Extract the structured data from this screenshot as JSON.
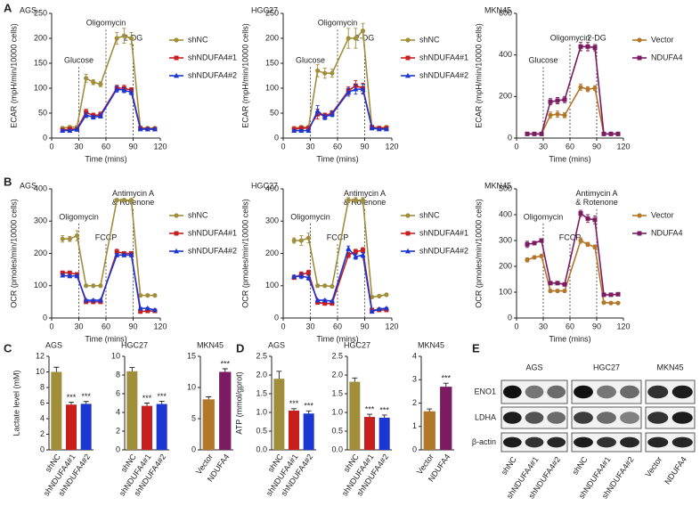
{
  "panel_labels": [
    "A",
    "B",
    "C",
    "D",
    "E"
  ],
  "chart_data": [
    {
      "type": "line",
      "title": "AGS",
      "xlabel": "Time (mins)",
      "ylabel": "ECAR (mpH/min/10000 cells)",
      "x": [
        12,
        20,
        28,
        38,
        46,
        54,
        72,
        80,
        88,
        98,
        106,
        114
      ],
      "xlim": [
        0,
        120
      ],
      "xticks": [
        0,
        30,
        60,
        90,
        120
      ],
      "ylim": [
        0,
        250
      ],
      "yticks": [
        0,
        50,
        100,
        150,
        200,
        250
      ],
      "annotations": [
        {
          "x": 30,
          "text": [
            "Glucose"
          ]
        },
        {
          "x": 60,
          "text": [
            "Oligomycin"
          ]
        },
        {
          "x": 90,
          "text": [
            "2-DG"
          ]
        }
      ],
      "series": [
        {
          "name": "shNC",
          "color": "#a18e3b",
          "marker": "circle",
          "values": [
            20,
            22,
            22,
            120,
            112,
            108,
            200,
            205,
            200,
            20,
            20,
            20
          ],
          "errors": [
            3,
            3,
            3,
            8,
            5,
            5,
            12,
            15,
            12,
            3,
            2,
            2
          ]
        },
        {
          "name": "shNDUFA4#1",
          "color": "#c81e1e",
          "marker": "square",
          "values": [
            16,
            18,
            18,
            52,
            45,
            47,
            100,
            100,
            96,
            20,
            18,
            18
          ],
          "errors": [
            2,
            2,
            2,
            6,
            5,
            5,
            6,
            6,
            5,
            2,
            2,
            2
          ]
        },
        {
          "name": "shNDUFA4#2",
          "color": "#1b36d1",
          "marker": "triangle",
          "values": [
            15,
            15,
            17,
            46,
            42,
            44,
            98,
            96,
            92,
            18,
            18,
            18
          ],
          "errors": [
            2,
            2,
            2,
            5,
            4,
            4,
            6,
            5,
            5,
            2,
            2,
            2
          ]
        }
      ]
    },
    {
      "type": "line",
      "title": "HGC27",
      "xlabel": "Time (mins)",
      "ylabel": "ECAR (mpH/min/10000 cells)",
      "x": [
        12,
        20,
        28,
        38,
        46,
        54,
        72,
        80,
        88,
        98,
        106,
        114
      ],
      "xlim": [
        0,
        120
      ],
      "xticks": [
        0,
        30,
        60,
        90,
        120
      ],
      "ylim": [
        0,
        250
      ],
      "yticks": [
        0,
        50,
        100,
        150,
        200,
        250
      ],
      "annotations": [
        {
          "x": 30,
          "text": [
            "Glucose"
          ]
        },
        {
          "x": 60,
          "text": [
            "Oligomycin"
          ]
        },
        {
          "x": 90,
          "text": [
            "2-DG"
          ]
        }
      ],
      "series": [
        {
          "name": "shNC",
          "color": "#a18e3b",
          "marker": "circle",
          "values": [
            20,
            22,
            22,
            135,
            130,
            130,
            200,
            200,
            215,
            20,
            20,
            22
          ],
          "errors": [
            3,
            3,
            3,
            12,
            10,
            8,
            20,
            20,
            15,
            3,
            2,
            2
          ]
        },
        {
          "name": "shNDUFA4#1",
          "color": "#c81e1e",
          "marker": "square",
          "values": [
            18,
            20,
            20,
            48,
            45,
            50,
            95,
            105,
            100,
            22,
            20,
            20
          ],
          "errors": [
            2,
            2,
            2,
            10,
            5,
            5,
            8,
            10,
            10,
            2,
            2,
            2
          ]
        },
        {
          "name": "shNDUFA4#2",
          "color": "#1b36d1",
          "marker": "triangle",
          "values": [
            15,
            15,
            15,
            55,
            42,
            48,
            92,
            98,
            98,
            20,
            18,
            18
          ],
          "errors": [
            2,
            2,
            2,
            10,
            5,
            5,
            8,
            10,
            10,
            2,
            2,
            2
          ]
        }
      ]
    },
    {
      "type": "line",
      "title": "MKN45",
      "xlabel": "Time (mins)",
      "ylabel": "ECAR (mpH/min/10000 cells)",
      "x": [
        12,
        20,
        28,
        38,
        46,
        54,
        72,
        80,
        88,
        98,
        106,
        114
      ],
      "xlim": [
        0,
        120
      ],
      "xticks": [
        0,
        30,
        60,
        90,
        120
      ],
      "ylim": [
        0,
        600
      ],
      "yticks": [
        0,
        200,
        400,
        600
      ],
      "annotations": [
        {
          "x": 30,
          "text": [
            "Glucose"
          ]
        },
        {
          "x": 60,
          "text": [
            "Oligomycin"
          ]
        },
        {
          "x": 90,
          "text": [
            "2-DG"
          ]
        }
      ],
      "series": [
        {
          "name": "Vector",
          "color": "#b3772a",
          "marker": "circle",
          "values": [
            20,
            20,
            20,
            110,
            115,
            110,
            245,
            235,
            240,
            20,
            20,
            20
          ],
          "errors": [
            4,
            4,
            4,
            15,
            15,
            12,
            15,
            12,
            12,
            3,
            3,
            3
          ]
        },
        {
          "name": "NDUFA4",
          "color": "#7b1c63",
          "marker": "square",
          "values": [
            20,
            20,
            20,
            175,
            180,
            185,
            440,
            440,
            435,
            20,
            20,
            20
          ],
          "errors": [
            4,
            4,
            4,
            15,
            15,
            15,
            20,
            20,
            15,
            3,
            3,
            3
          ]
        }
      ]
    },
    {
      "type": "line",
      "title": "AGS",
      "xlabel": "Time (mins)",
      "ylabel": "OCR (pmoles/min/10000 cells)",
      "x": [
        12,
        20,
        28,
        38,
        46,
        54,
        72,
        80,
        88,
        98,
        106,
        114
      ],
      "xlim": [
        0,
        120
      ],
      "xticks": [
        0,
        30,
        60,
        90,
        120
      ],
      "ylim": [
        0,
        400
      ],
      "yticks": [
        0,
        100,
        200,
        300,
        400
      ],
      "annotations": [
        {
          "x": 30,
          "text": [
            "Oligomycin"
          ]
        },
        {
          "x": 60,
          "text": [
            "FCCP"
          ]
        },
        {
          "x": 90,
          "text": [
            "Antimycin A",
            "& Rotenone"
          ]
        }
      ],
      "series": [
        {
          "name": "shNC",
          "color": "#a18e3b",
          "marker": "circle",
          "values": [
            245,
            245,
            255,
            100,
            100,
            100,
            365,
            365,
            365,
            70,
            70,
            70
          ],
          "errors": [
            10,
            8,
            15,
            3,
            3,
            3,
            5,
            5,
            5,
            3,
            3,
            3
          ]
        },
        {
          "name": "shNDUFA4#1",
          "color": "#c81e1e",
          "marker": "square",
          "values": [
            140,
            140,
            135,
            50,
            50,
            50,
            205,
            200,
            200,
            20,
            22,
            22
          ],
          "errors": [
            5,
            5,
            5,
            3,
            3,
            3,
            8,
            5,
            5,
            3,
            3,
            3
          ]
        },
        {
          "name": "shNDUFA4#2",
          "color": "#1b36d1",
          "marker": "triangle",
          "values": [
            132,
            130,
            130,
            55,
            55,
            55,
            195,
            195,
            195,
            30,
            30,
            25
          ],
          "errors": [
            5,
            5,
            5,
            3,
            3,
            3,
            5,
            5,
            5,
            3,
            3,
            3
          ]
        }
      ]
    },
    {
      "type": "line",
      "title": "HGC27",
      "xlabel": "Time (mins)",
      "ylabel": "OCR (pmoles/min/10000 cells)",
      "x": [
        12,
        20,
        28,
        38,
        46,
        54,
        72,
        80,
        88,
        98,
        106,
        114
      ],
      "xlim": [
        0,
        120
      ],
      "xticks": [
        0,
        30,
        60,
        90,
        120
      ],
      "ylim": [
        0,
        400
      ],
      "yticks": [
        0,
        100,
        200,
        300,
        400
      ],
      "annotations": [
        {
          "x": 30,
          "text": [
            "Oligomycin"
          ]
        },
        {
          "x": 60,
          "text": [
            "FCCP"
          ]
        },
        {
          "x": 90,
          "text": [
            "Antimycin A",
            "& Rotenone"
          ]
        }
      ],
      "series": [
        {
          "name": "shNC",
          "color": "#a18e3b",
          "marker": "circle",
          "values": [
            240,
            240,
            248,
            100,
            100,
            98,
            365,
            365,
            365,
            65,
            68,
            72
          ],
          "errors": [
            8,
            15,
            15,
            3,
            3,
            3,
            8,
            8,
            8,
            3,
            3,
            3
          ]
        },
        {
          "name": "shNDUFA4#1",
          "color": "#c81e1e",
          "marker": "square",
          "values": [
            125,
            135,
            140,
            48,
            45,
            45,
            195,
            205,
            210,
            25,
            25,
            25
          ],
          "errors": [
            5,
            8,
            8,
            3,
            3,
            3,
            8,
            8,
            8,
            3,
            3,
            3
          ]
        },
        {
          "name": "shNDUFA4#2",
          "color": "#1b36d1",
          "marker": "triangle",
          "values": [
            128,
            130,
            125,
            55,
            55,
            52,
            215,
            190,
            195,
            20,
            28,
            30
          ],
          "errors": [
            5,
            8,
            8,
            3,
            3,
            3,
            8,
            8,
            8,
            3,
            3,
            3
          ]
        }
      ]
    },
    {
      "type": "line",
      "title": "MKN45",
      "xlabel": "Time (mins)",
      "ylabel": "OCR (pmoles/min/10000 cells)",
      "x": [
        12,
        20,
        28,
        38,
        46,
        54,
        72,
        80,
        88,
        98,
        106,
        114
      ],
      "xlim": [
        0,
        120
      ],
      "xticks": [
        0,
        30,
        60,
        90,
        120
      ],
      "ylim": [
        0,
        500
      ],
      "yticks": [
        0,
        100,
        200,
        300,
        400,
        500
      ],
      "annotations": [
        {
          "x": 30,
          "text": [
            "Oligomycin"
          ]
        },
        {
          "x": 60,
          "text": [
            "FCCP"
          ]
        },
        {
          "x": 90,
          "text": [
            "Antimycin A",
            "& Rotenone"
          ]
        }
      ],
      "series": [
        {
          "name": "Vector",
          "color": "#b3772a",
          "marker": "circle",
          "values": [
            225,
            235,
            240,
            105,
            105,
            105,
            300,
            285,
            275,
            60,
            58,
            58
          ],
          "errors": [
            8,
            5,
            5,
            5,
            5,
            5,
            10,
            8,
            8,
            3,
            3,
            3
          ]
        },
        {
          "name": "NDUFA4",
          "color": "#7b1c63",
          "marker": "square",
          "values": [
            285,
            290,
            300,
            135,
            135,
            130,
            405,
            385,
            380,
            90,
            90,
            92
          ],
          "errors": [
            12,
            5,
            5,
            5,
            5,
            5,
            12,
            15,
            15,
            3,
            3,
            3
          ]
        }
      ]
    },
    {
      "type": "bar",
      "title": "AGS",
      "ylabel": "Lactate level (mM)",
      "categories": [
        "shNC",
        "shNDUFA4#1",
        "shNDUFA4#2"
      ],
      "colors": [
        "#a18e3b",
        "#c81e1e",
        "#1b36d1"
      ],
      "values": [
        10.0,
        5.8,
        5.9
      ],
      "errors": [
        0.6,
        0.3,
        0.3
      ],
      "significance": [
        null,
        "***",
        "***"
      ],
      "ylim": [
        0,
        12
      ],
      "yticks": [
        0,
        2,
        4,
        6,
        8,
        10,
        12
      ]
    },
    {
      "type": "bar",
      "title": "HGC27",
      "categories": [
        "shNC",
        "shNDUFA4#1",
        "shNDUFA4#2"
      ],
      "colors": [
        "#a18e3b",
        "#c81e1e",
        "#1b36d1"
      ],
      "values": [
        8.4,
        4.7,
        4.9
      ],
      "errors": [
        0.4,
        0.3,
        0.3
      ],
      "significance": [
        null,
        "***",
        "***"
      ],
      "ylim": [
        0,
        10
      ],
      "yticks": [
        0,
        2,
        4,
        6,
        8,
        10
      ]
    },
    {
      "type": "bar",
      "title": "MKN45",
      "categories": [
        "Vector",
        "NDUFA4"
      ],
      "colors": [
        "#b3772a",
        "#7b1c63"
      ],
      "values": [
        8.1,
        12.5
      ],
      "errors": [
        0.4,
        0.5
      ],
      "significance": [
        null,
        "***"
      ],
      "ylim": [
        0,
        15
      ],
      "yticks": [
        0,
        5,
        10,
        15
      ]
    },
    {
      "type": "bar",
      "title": "AGS",
      "ylabel": "ATP (mmol/gprot)",
      "categories": [
        "shNC",
        "shNDUFA4#1",
        "shNDUFA4#2"
      ],
      "colors": [
        "#a18e3b",
        "#c81e1e",
        "#1b36d1"
      ],
      "values": [
        1.9,
        1.05,
        0.97
      ],
      "errors": [
        0.2,
        0.05,
        0.07
      ],
      "significance": [
        null,
        "***",
        "***"
      ],
      "ylim": [
        0,
        2.5
      ],
      "yticks": [
        {
          "value": 0,
          "label": "0.0"
        },
        0.5,
        {
          "value": 1,
          "label": "1.0"
        },
        1.5,
        {
          "value": 2,
          "label": "2.0"
        },
        2.5
      ]
    },
    {
      "type": "bar",
      "title": "HGC27",
      "categories": [
        "shNC",
        "shNDUFA4#1",
        "shNDUFA4#2"
      ],
      "colors": [
        "#a18e3b",
        "#c81e1e",
        "#1b36d1"
      ],
      "values": [
        1.82,
        0.88,
        0.86
      ],
      "errors": [
        0.1,
        0.07,
        0.07
      ],
      "significance": [
        null,
        "***",
        "***"
      ],
      "ylim": [
        0,
        2.5
      ],
      "yticks": [
        {
          "value": 0,
          "label": "0.0"
        },
        0.5,
        {
          "value": 1,
          "label": "1.0"
        },
        1.5,
        {
          "value": 2,
          "label": "2.0"
        },
        2.5
      ]
    },
    {
      "type": "bar",
      "title": "MKN45",
      "categories": [
        "Vector",
        "NDUFA4"
      ],
      "colors": [
        "#b3772a",
        "#7b1c63"
      ],
      "values": [
        1.65,
        2.7
      ],
      "errors": [
        0.1,
        0.15
      ],
      "significance": [
        null,
        "***"
      ],
      "ylim": [
        0,
        4
      ],
      "yticks": [
        0,
        1,
        2,
        3,
        4
      ]
    }
  ],
  "blot": {
    "groups": [
      "AGS",
      "HGC27",
      "MKN45"
    ],
    "rows": [
      "ENO1",
      "LDHA",
      "β-actin"
    ],
    "lanes": [
      "shNC",
      "shNDUFA4#1",
      "shNDUFA4#2",
      "shNC",
      "shNDUFA4#1",
      "shNDUFA4#2",
      "Vector",
      "NDUFA4"
    ]
  }
}
